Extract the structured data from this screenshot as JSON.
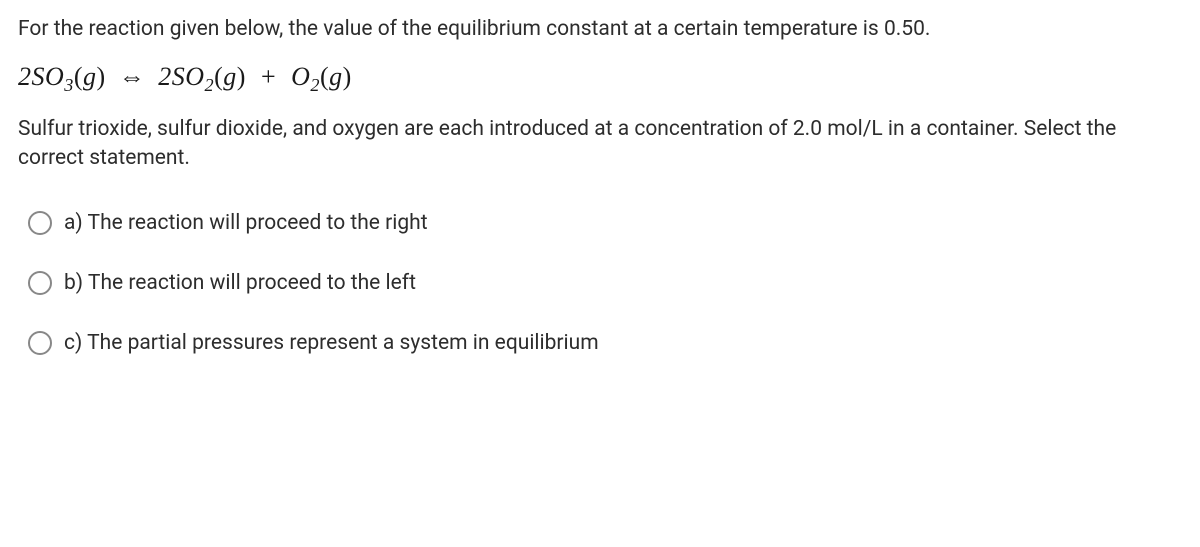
{
  "question": {
    "intro": "For the reaction given below, the value of the equilibrium constant at a certain temperature is 0.50.",
    "equation": {
      "reactant_coefficient": "2",
      "reactant_formula": "SO",
      "reactant_sub": "3",
      "reactant_state": "g",
      "product1_coefficient": "2",
      "product1_formula": "SO",
      "product1_sub": "2",
      "product1_state": "g",
      "product2_formula": "O",
      "product2_sub": "2",
      "product2_state": "g",
      "arrow": "⇔",
      "plus": "+"
    },
    "followup": "Sulfur trioxide, sulfur dioxide, and oxygen are each introduced at a concentration of 2.0 mol/L in a container. Select the correct statement."
  },
  "options": [
    {
      "letter": "a)",
      "text": "The reaction will proceed to the right"
    },
    {
      "letter": "b)",
      "text": "The reaction will proceed to the left"
    },
    {
      "letter": "c)",
      "text": "The partial pressures represent a system in equilibrium"
    }
  ],
  "colors": {
    "text": "#2d2d2d",
    "radio_border": "#888888",
    "background": "#ffffff"
  },
  "typography": {
    "body_fontsize": 21,
    "equation_fontsize": 26
  }
}
